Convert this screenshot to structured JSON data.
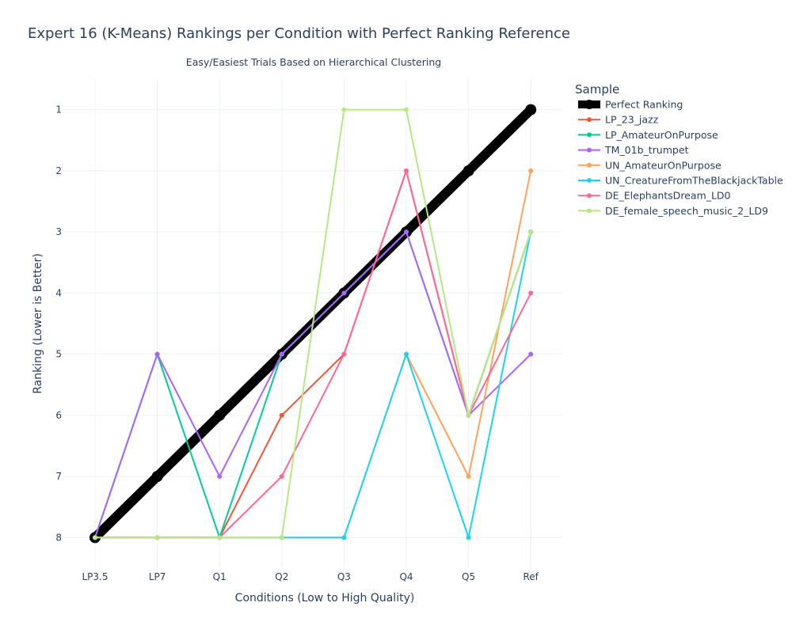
{
  "chart_data": {
    "type": "line",
    "title": "Expert 16 (K-Means) Rankings per Condition with Perfect Ranking Reference",
    "subtitle": "Easy/Easiest Trials Based on Hierarchical Clustering",
    "xlabel": "Conditions (Low to High Quality)",
    "ylabel": "Ranking (Lower is Better)",
    "categories": [
      "LP3.5",
      "LP7",
      "Q1",
      "Q2",
      "Q3",
      "Q4",
      "Q5",
      "Ref"
    ],
    "yticks": [
      1,
      2,
      3,
      4,
      5,
      6,
      7,
      8
    ],
    "ylim": [
      8.5,
      0.5
    ],
    "y_reversed": true,
    "grid": true,
    "legend_title": "Sample",
    "legend_position": "right",
    "series": [
      {
        "name": "Perfect Ranking",
        "color": "#000000",
        "values": [
          8,
          7,
          6,
          5,
          4,
          3,
          2,
          1
        ]
      },
      {
        "name": "LP_23_jazz",
        "color": "#EF553B",
        "values": [
          8,
          8,
          8,
          6,
          5,
          2,
          6,
          3
        ]
      },
      {
        "name": "LP_AmateurOnPurpose",
        "color": "#00CC96",
        "values": [
          8,
          5,
          8,
          5,
          4,
          3,
          6,
          3
        ]
      },
      {
        "name": "TM_01b_trumpet",
        "color": "#AB63FA",
        "values": [
          8,
          5,
          7,
          5,
          4,
          3,
          6,
          5
        ]
      },
      {
        "name": "UN_AmateurOnPurpose",
        "color": "#FFA15A",
        "values": [
          8,
          8,
          8,
          8,
          8,
          5,
          7,
          2
        ]
      },
      {
        "name": "UN_CreatureFromTheBlackjackTable",
        "color": "#19D3F3",
        "values": [
          8,
          8,
          8,
          8,
          8,
          5,
          8,
          3
        ]
      },
      {
        "name": "DE_ElephantsDream_LD0",
        "color": "#FF6692",
        "values": [
          8,
          8,
          8,
          7,
          5,
          2,
          6,
          4
        ]
      },
      {
        "name": "DE_female_speech_music_2_LD9",
        "color": "#B6E880",
        "values": [
          8,
          8,
          8,
          8,
          1,
          1,
          6,
          3
        ]
      }
    ]
  }
}
